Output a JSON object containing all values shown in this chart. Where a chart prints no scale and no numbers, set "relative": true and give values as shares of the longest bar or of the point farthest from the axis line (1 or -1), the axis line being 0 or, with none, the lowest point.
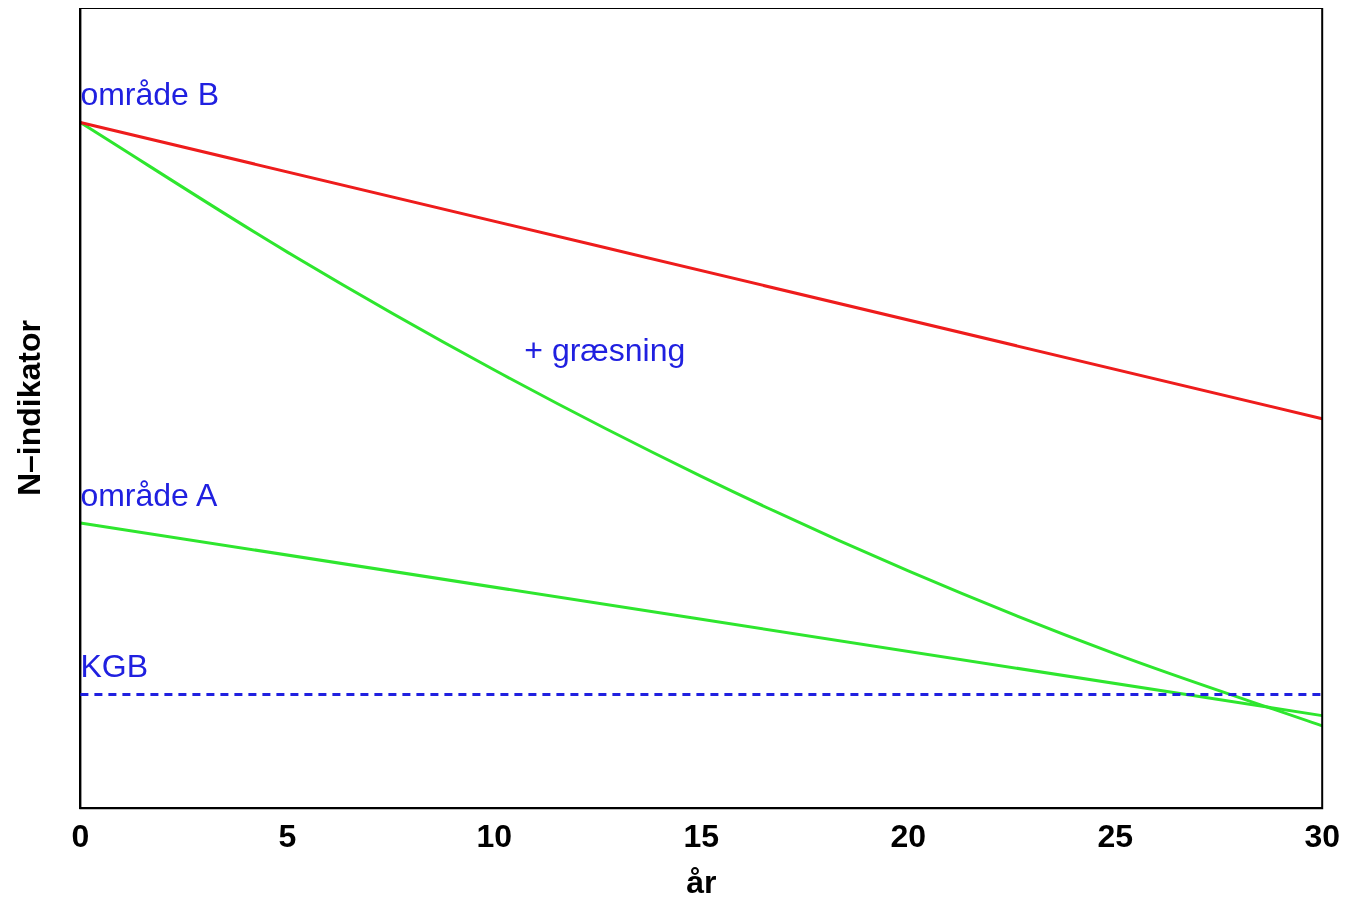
{
  "chart_data": {
    "type": "line",
    "relative": true,
    "xlabel": "år",
    "ylabel": "N–indikator",
    "xlim": [
      0,
      30
    ],
    "xticks": [
      0,
      5,
      10,
      15,
      20,
      25,
      30
    ],
    "tick_labels": "x",
    "grid": false,
    "legend": false,
    "marker": "none",
    "line_style": "solid",
    "series": [
      {
        "name": "område B",
        "color": "#ee1c1c",
        "x": [
          0,
          30
        ],
        "values": [
          1,
          0.568
        ]
      },
      {
        "name": "+ græsning",
        "color": "#2ee62e",
        "x": [
          0,
          5,
          10,
          15,
          20,
          25,
          30
        ],
        "values": [
          1,
          0.811,
          0.639,
          0.484,
          0.346,
          0.225,
          0.12
        ]
      },
      {
        "name": "område A",
        "color": "#2ee62e",
        "x": [
          0,
          30
        ],
        "values": [
          0.416,
          0.135
        ]
      }
    ],
    "ref_lines": [
      {
        "axis": "y",
        "value": 0.166,
        "label": "KGB",
        "color": "#2020e0",
        "line_style": "dashed"
      }
    ]
  }
}
